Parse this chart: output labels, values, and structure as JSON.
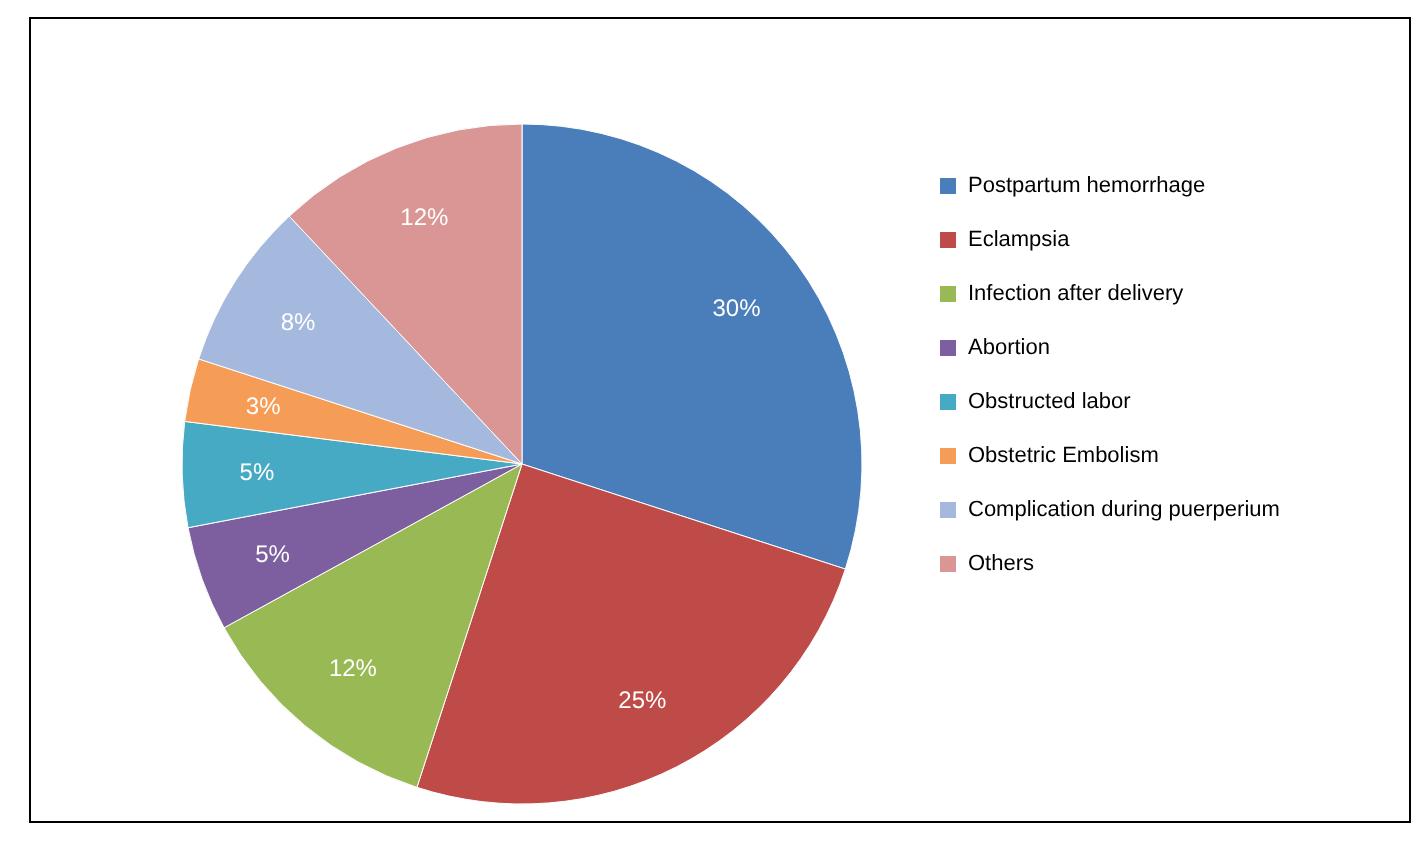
{
  "chart_data": {
    "type": "pie",
    "categories": [
      "Postpartum hemorrhage",
      "Eclampsia",
      "Infection after delivery",
      "Abortion",
      "Obstructed labor",
      "Obstetric Embolism",
      "Complication during puerperium",
      "Others"
    ],
    "values": [
      30,
      25,
      12,
      5,
      5,
      3,
      8,
      12
    ],
    "colors": [
      "#4a7ebb",
      "#be4b48",
      "#98b954",
      "#7d5fa0",
      "#46aac5",
      "#f59d56",
      "#a5b9de",
      "#d99694"
    ],
    "value_labels": [
      "30%",
      "25%",
      "12%",
      "5%",
      "5%",
      "3%",
      "8%",
      "12%"
    ],
    "legend": "right"
  }
}
